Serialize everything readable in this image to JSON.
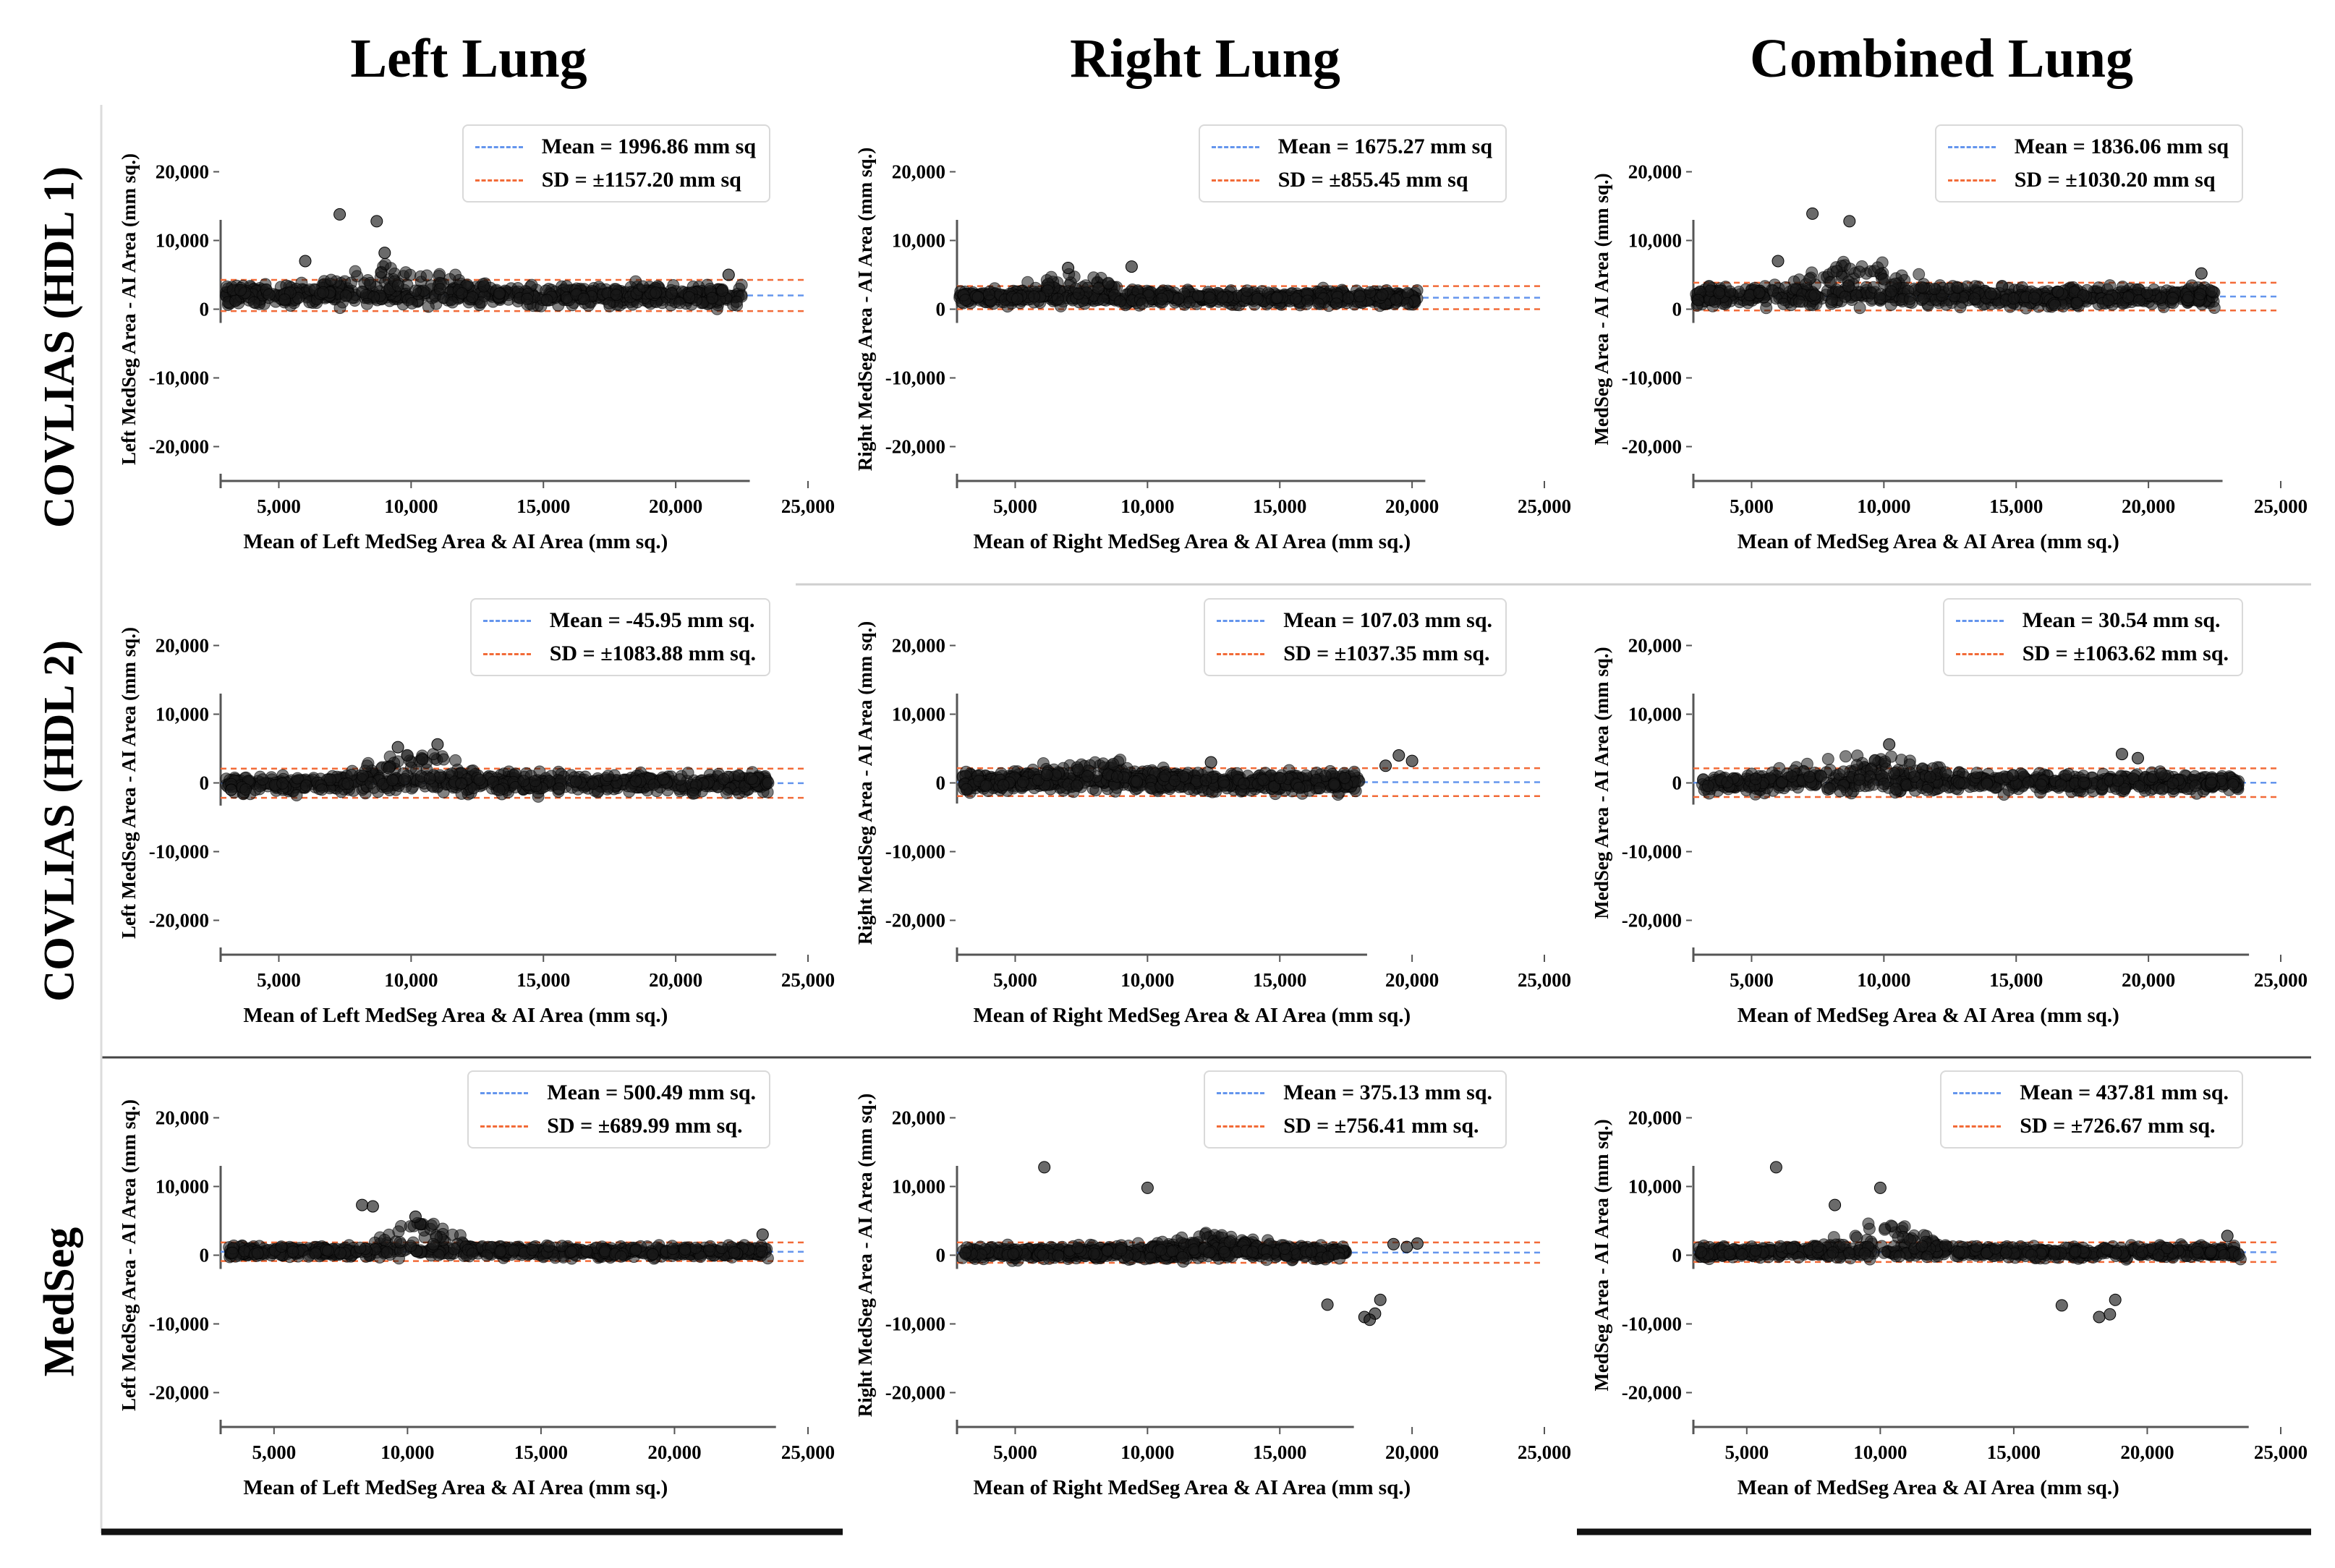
{
  "figure": {
    "column_titles": [
      "Left Lung",
      "Right Lung",
      "Combined Lung"
    ],
    "row_titles": [
      "COVLIAS (HDL 1)",
      "COVLIAS (HDL 2)",
      "MedSeg"
    ]
  },
  "colors": {
    "mean_line": "#6495ed",
    "sd_line": "#f26b38",
    "points": "#1a1a1a",
    "axis": "#555555"
  },
  "chart_data": [
    {
      "type": "scatter",
      "title": "Left Lung — COVLIAS (HDL 1)",
      "xlabel": "Mean of Left MedSeg Area & AI Area (mm sq.)",
      "ylabel": "Left MedSeg Area - AI Area (mm sq.)",
      "xlim": [
        2800,
        25000
      ],
      "ylim": [
        -25000,
        25000
      ],
      "xticks": [
        "5,000",
        "10,000",
        "15,000",
        "20,000",
        "25,000"
      ],
      "yticks": [
        "20,000",
        "10,000",
        "0",
        "-10,000",
        "-20,000"
      ],
      "legend": {
        "mean": "Mean = 1996.86 mm sq",
        "sd": "SD = ±1157.20 mm sq"
      },
      "mean": 1996.86,
      "sd": 1157.2,
      "cloud": {
        "x_min": 3000,
        "x_max": 22500,
        "spread": 1300,
        "hump_center": 9500,
        "hump_width": 2600,
        "hump_height": 4500,
        "tail_count": 6
      },
      "outliers": [
        [
          7300,
          13800
        ],
        [
          8700,
          12800
        ],
        [
          9000,
          8200
        ],
        [
          6000,
          7000
        ],
        [
          22000,
          5000
        ]
      ]
    },
    {
      "type": "scatter",
      "title": "Right Lung — COVLIAS (HDL 1)",
      "xlabel": "Mean of Right MedSeg Area & AI Area (mm sq.)",
      "ylabel": "Right MedSeg Area - AI Area (mm sq.)",
      "xlim": [
        2800,
        25000
      ],
      "ylim": [
        -25000,
        25000
      ],
      "xticks": [
        "5,000",
        "10,000",
        "15,000",
        "20,000",
        "25,000"
      ],
      "yticks": [
        "20,000",
        "10,000",
        "0",
        "-10,000",
        "-20,000"
      ],
      "legend": {
        "mean": "Mean = 1675.27 mm sq",
        "sd": "SD = ±855.45 mm sq"
      },
      "mean": 1675.27,
      "sd": 855.45,
      "cloud": {
        "x_min": 2900,
        "x_max": 20200,
        "spread": 900,
        "hump_center": 7500,
        "hump_width": 2200,
        "hump_height": 3000,
        "tail_count": 0
      },
      "outliers": [
        [
          9400,
          6200
        ],
        [
          7000,
          6000
        ]
      ]
    },
    {
      "type": "scatter",
      "title": "Combined Lung — COVLIAS (HDL 1)",
      "xlabel": "Mean of MedSeg Area & AI Area (mm sq.)",
      "ylabel": "MedSeg Area - AI Area (mm sq.)",
      "xlim": [
        2800,
        25000
      ],
      "ylim": [
        -25000,
        25000
      ],
      "xticks": [
        "5,000",
        "10,000",
        "15,000",
        "20,000",
        "25,000"
      ],
      "yticks": [
        "20,000",
        "10,000",
        "0",
        "-10,000",
        "-20,000"
      ],
      "legend": {
        "mean": "Mean = 1836.06 mm sq",
        "sd": "SD = ±1030.20 mm sq"
      },
      "mean": 1836.06,
      "sd": 1030.2,
      "cloud": {
        "x_min": 2900,
        "x_max": 22500,
        "spread": 1200,
        "hump_center": 9000,
        "hump_width": 3000,
        "hump_height": 4300,
        "tail_count": 6
      },
      "outliers": [
        [
          7300,
          13900
        ],
        [
          8700,
          12800
        ],
        [
          6000,
          7000
        ],
        [
          22000,
          5200
        ]
      ]
    },
    {
      "type": "scatter",
      "title": "Left Lung — COVLIAS (HDL 2)",
      "xlabel": "Mean of Left MedSeg Area & AI Area (mm sq.)",
      "ylabel": "Left MedSeg Area - AI Area (mm sq.)",
      "xlim": [
        2800,
        25000
      ],
      "ylim": [
        -25000,
        25000
      ],
      "xticks": [
        "5,000",
        "10,000",
        "15,000",
        "20,000",
        "25,000"
      ],
      "yticks": [
        "20,000",
        "10,000",
        "0",
        "-10,000",
        "-20,000"
      ],
      "legend": {
        "mean": "Mean = -45.95 mm sq.",
        "sd": "SD = ±1083.88 mm sq."
      },
      "mean": -45.95,
      "sd": 1083.88,
      "cloud": {
        "x_min": 3000,
        "x_max": 23500,
        "spread": 1200,
        "hump_center": 10200,
        "hump_width": 2200,
        "hump_height": 4200,
        "tail_count": 5
      },
      "outliers": [
        [
          11000,
          5600
        ],
        [
          9500,
          5200
        ],
        [
          3200,
          -1000
        ]
      ]
    },
    {
      "type": "scatter",
      "title": "Right Lung — COVLIAS (HDL 2)",
      "xlabel": "Mean of Right MedSeg Area & AI Area (mm sq.)",
      "ylabel": "Right MedSeg Area - AI Area (mm sq.)",
      "xlim": [
        2800,
        25000
      ],
      "ylim": [
        -25000,
        25000
      ],
      "xticks": [
        "5,000",
        "10,000",
        "15,000",
        "20,000",
        "25,000"
      ],
      "yticks": [
        "20,000",
        "10,000",
        "0",
        "-10,000",
        "-20,000"
      ],
      "legend": {
        "mean": "Mean = 107.03 mm sq.",
        "sd": "SD = ±1037.35 mm sq."
      },
      "mean": 107.03,
      "sd": 1037.35,
      "cloud": {
        "x_min": 3000,
        "x_max": 18000,
        "spread": 1200,
        "hump_center": 8000,
        "hump_width": 2500,
        "hump_height": 2800,
        "tail_count": 0
      },
      "outliers": [
        [
          19500,
          4000
        ],
        [
          20000,
          3200
        ],
        [
          19000,
          2500
        ],
        [
          12400,
          3000
        ]
      ]
    },
    {
      "type": "scatter",
      "title": "Combined Lung — COVLIAS (HDL 2)",
      "xlabel": "Mean of MedSeg Area & AI Area (mm sq.)",
      "ylabel": "MedSeg Area - AI Area (mm sq.)",
      "xlim": [
        2800,
        25000
      ],
      "ylim": [
        -25000,
        25000
      ],
      "xticks": [
        "5,000",
        "10,000",
        "15,000",
        "20,000",
        "25,000"
      ],
      "yticks": [
        "20,000",
        "10,000",
        "0",
        "-10,000",
        "-20,000"
      ],
      "legend": {
        "mean": "Mean = 30.54 mm sq.",
        "sd": "SD = ±1063.62 mm sq."
      },
      "mean": 30.54,
      "sd": 1063.62,
      "cloud": {
        "x_min": 3000,
        "x_max": 23500,
        "spread": 1200,
        "hump_center": 9800,
        "hump_width": 2800,
        "hump_height": 4200,
        "tail_count": 5
      },
      "outliers": [
        [
          10200,
          5600
        ],
        [
          19000,
          4200
        ],
        [
          19600,
          3600
        ]
      ]
    },
    {
      "type": "scatter",
      "title": "Left Lung — MedSeg",
      "xlabel": "Mean of Left MedSeg Area & AI Area (mm sq.)",
      "ylabel": "Left MedSeg Area - AI Area (mm sq.)",
      "xlim": [
        3000,
        25000
      ],
      "ylim": [
        -25000,
        25000
      ],
      "xticks": [
        "5,000",
        "10,000",
        "15,000",
        "20,000",
        "25,000"
      ],
      "yticks": [
        "20,000",
        "10,000",
        "0",
        "-10,000",
        "-20,000"
      ],
      "legend": {
        "mean": "Mean = 500.49 mm sq.",
        "sd": "SD = ±689.99 mm sq."
      },
      "mean": 500.49,
      "sd": 689.99,
      "cloud": {
        "x_min": 3300,
        "x_max": 23500,
        "spread": 700,
        "hump_center": 10500,
        "hump_width": 1600,
        "hump_height": 4600,
        "tail_count": 3
      },
      "outliers": [
        [
          8300,
          7300
        ],
        [
          8700,
          7100
        ],
        [
          23300,
          3000
        ],
        [
          10300,
          5600
        ]
      ]
    },
    {
      "type": "scatter",
      "title": "Right Lung — MedSeg",
      "xlabel": "Mean of Right MedSeg Area & AI Area (mm sq.)",
      "ylabel": "Right MedSeg Area - AI Area (mm sq.)",
      "xlim": [
        2800,
        25000
      ],
      "ylim": [
        -25000,
        25000
      ],
      "xticks": [
        "5,000",
        "10,000",
        "15,000",
        "20,000",
        "25,000"
      ],
      "yticks": [
        "20,000",
        "10,000",
        "0",
        "-10,000",
        "-20,000"
      ],
      "legend": {
        "mean": "Mean = 375.13 mm sq.",
        "sd": "SD = ±756.41 mm sq."
      },
      "mean": 375.13,
      "sd": 756.41,
      "cloud": {
        "x_min": 3000,
        "x_max": 17500,
        "spread": 800,
        "hump_center": 12000,
        "hump_width": 2500,
        "hump_height": 2500,
        "tail_count": 0
      },
      "outliers": [
        [
          6100,
          12800
        ],
        [
          10000,
          9800
        ],
        [
          16800,
          -7200
        ],
        [
          18200,
          -9000
        ],
        [
          18600,
          -8500
        ],
        [
          18800,
          -6500
        ],
        [
          18400,
          -9400
        ],
        [
          19300,
          1600
        ],
        [
          20200,
          1700
        ],
        [
          19800,
          1200
        ]
      ]
    },
    {
      "type": "scatter",
      "title": "Combined Lung — MedSeg",
      "xlabel": "Mean of MedSeg Area & AI Area (mm sq.)",
      "ylabel": "MedSeg Area - AI Area (mm sq.)",
      "xlim": [
        3000,
        25000
      ],
      "ylim": [
        -25000,
        25000
      ],
      "xticks": [
        "5,000",
        "10,000",
        "15,000",
        "20,000",
        "25,000"
      ],
      "yticks": [
        "20,000",
        "10,000",
        "0",
        "-10,000",
        "-20,000"
      ],
      "legend": {
        "mean": "Mean = 437.81 mm sq.",
        "sd": "SD = ±726.67 mm sq."
      },
      "mean": 437.81,
      "sd": 726.67,
      "cloud": {
        "x_min": 3200,
        "x_max": 23500,
        "spread": 750,
        "hump_center": 10200,
        "hump_width": 2000,
        "hump_height": 4400,
        "tail_count": 3
      },
      "outliers": [
        [
          6100,
          12800
        ],
        [
          10000,
          9800
        ],
        [
          8300,
          7300
        ],
        [
          16800,
          -7300
        ],
        [
          18200,
          -9000
        ],
        [
          18600,
          -8600
        ],
        [
          18800,
          -6500
        ],
        [
          23000,
          2800
        ]
      ]
    }
  ]
}
